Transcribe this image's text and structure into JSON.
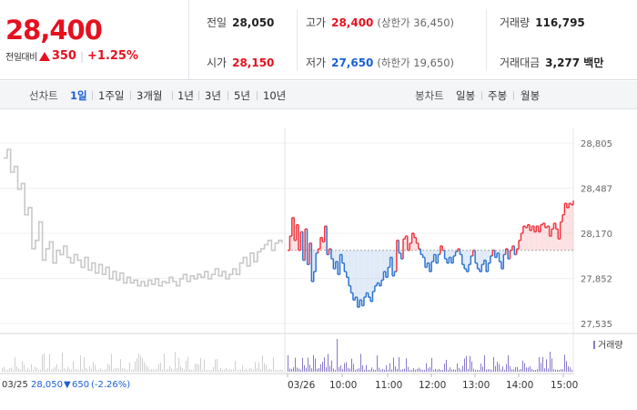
{
  "header": {
    "price": "28,400",
    "change_label": "전일대비",
    "change_value": "350",
    "change_pct": "+1.25%",
    "stats": {
      "prev_label": "전일",
      "prev_value": "28,050",
      "high_label": "고가",
      "high_value": "28,400",
      "upper_limit": "(상한가 36,450)",
      "volume_label": "거래량",
      "volume_value": "116,795",
      "open_label": "시가",
      "open_value": "28,150",
      "low_label": "저가",
      "low_value": "27,650",
      "lower_limit": "(하한가 19,650)",
      "amount_label": "거래대금",
      "amount_value": "3,277 백만"
    }
  },
  "tabs": {
    "line_label": "선차트",
    "line_periods": [
      "1일",
      "1주일",
      "3개월",
      "1년",
      "3년",
      "5년",
      "10년"
    ],
    "active_period": "1일",
    "candle_label": "봉차트",
    "candle_periods": [
      "일봉",
      "주봉",
      "월봉"
    ]
  },
  "chart_data": {
    "type": "line",
    "title": "",
    "ylabel": "",
    "yticks": [
      "28,805",
      "28,487",
      "28,170",
      "27,852",
      "27,535"
    ],
    "ylim": [
      27535,
      28805
    ],
    "baseline": 28050,
    "xticks": [
      "03/26",
      "10:00",
      "11:00",
      "12:00",
      "13:00",
      "14:00",
      "15:00"
    ],
    "volume_legend": "거래량",
    "prev_day_label": "03/25",
    "prev_day_close": "28,050",
    "prev_day_change": "650",
    "prev_day_pct": "(-2.26%)",
    "colors": {
      "up": "#f2353f",
      "down": "#2f74d0",
      "prev": "#c8c8c8",
      "volume": "#8a78c8"
    },
    "series": [
      {
        "values": [
          28700,
          28760,
          28600,
          28640,
          28480,
          28520,
          28300,
          28350,
          28060,
          28120,
          28250,
          27980,
          28060,
          28110,
          27960,
          28050,
          28020,
          28080,
          28000,
          27960,
          28020,
          27980,
          27930,
          28000,
          27910,
          27960,
          27890,
          27950,
          27880,
          27930,
          27850,
          27900,
          27840,
          27890,
          27820,
          27860,
          27820,
          27840,
          27800,
          27830,
          27800,
          27840,
          27810,
          27850,
          27800,
          27830,
          27820,
          27860,
          27830,
          27800,
          27850,
          27880,
          27830,
          27870,
          27850,
          27880,
          27860,
          27900,
          27850,
          27880,
          27920,
          27870,
          27900,
          27850,
          27880,
          27920,
          27880,
          27960,
          28000,
          27940,
          28030,
          27970,
          28040,
          28060,
          28090,
          28120,
          28050,
          28100,
          28120,
          28100
        ]
      },
      {
        "values": [
          28050,
          28150,
          28280,
          28120,
          28230,
          28050,
          28180,
          27980,
          28200,
          27950,
          28100,
          27830,
          27900,
          28030,
          28060,
          28140,
          28110,
          28220,
          28020,
          28060,
          27990,
          27920,
          27970,
          27880,
          28020,
          27960,
          27900,
          27860,
          27800,
          27750,
          27700,
          27720,
          27650,
          27700,
          27660,
          27720,
          27750,
          27720,
          27690,
          27760,
          27800,
          27820,
          27800,
          27840,
          27900,
          27860,
          27930,
          28000,
          27870,
          27900,
          28120,
          28030,
          27990,
          28130,
          28150,
          28050,
          28100,
          28170,
          28140,
          28100,
          28060,
          28020,
          28000,
          27930,
          27960,
          27900,
          27970,
          28020,
          27960,
          28020,
          28080,
          28050,
          27990,
          27960,
          28000,
          27960,
          28010,
          28040,
          28060,
          28020,
          27950,
          27920,
          27900,
          27950,
          28010,
          28050,
          27960,
          27920,
          27900,
          27950,
          27980,
          27900,
          27960,
          28010,
          28050,
          28000,
          28030,
          27970,
          27920,
          28020,
          28060,
          27990,
          28050,
          28080,
          28020,
          28060,
          28120,
          28170,
          28220,
          28210,
          28230,
          28190,
          28220,
          28180,
          28220,
          28180,
          28230,
          28240,
          28210,
          28220,
          28150,
          28200,
          28240,
          28200,
          28130,
          28250,
          28300,
          28380,
          28350,
          28380,
          28370,
          28400
        ]
      }
    ]
  }
}
